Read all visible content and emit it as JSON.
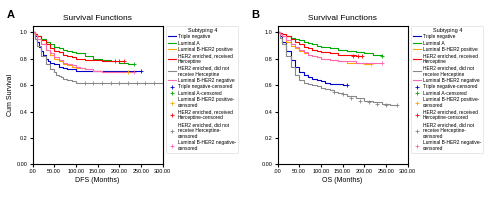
{
  "chart_data": [
    {
      "type": "step",
      "title": "Survival Functions",
      "annotations": [
        "A"
      ],
      "x_label": "DFS (Months)",
      "y_label": "Cum Survival",
      "xlim": [
        0,
        300
      ],
      "ylim": [
        0.0,
        1.05
      ],
      "xticks": [
        {
          "value": 0,
          "label": ".00"
        },
        {
          "value": 50,
          "label": "50.00"
        },
        {
          "value": 100,
          "label": "100.00"
        },
        {
          "value": 150,
          "label": "150.00"
        },
        {
          "value": 200,
          "label": "200.00"
        },
        {
          "value": 250,
          "label": "250.00"
        },
        {
          "value": 300,
          "label": "300.00"
        }
      ],
      "yticks": [
        {
          "value": 0.0,
          "label": "0.00"
        },
        {
          "value": 0.2,
          "label": "0.2"
        },
        {
          "value": 0.4,
          "label": "0.4"
        },
        {
          "value": 0.6,
          "label": "0.6"
        },
        {
          "value": 0.8,
          "label": "0.8"
        },
        {
          "value": 1.0,
          "label": "1.0"
        }
      ],
      "legend": "right",
      "legend_title": "Subtyping 4",
      "series": [
        {
          "name": "Triple negative",
          "type": "step",
          "color": "#0000CC",
          "x": [
            0,
            5,
            10,
            15,
            20,
            25,
            30,
            35,
            40,
            50,
            60,
            70,
            80,
            90,
            100,
            120,
            140,
            160,
            180,
            200,
            220,
            240,
            250
          ],
          "values": [
            1.0,
            0.97,
            0.93,
            0.89,
            0.86,
            0.83,
            0.8,
            0.78,
            0.77,
            0.76,
            0.74,
            0.73,
            0.72,
            0.72,
            0.71,
            0.71,
            0.71,
            0.71,
            0.71,
            0.71,
            0.71,
            0.71,
            0.71
          ]
        },
        {
          "name": "Luminal A",
          "type": "step",
          "color": "#00AA00",
          "x": [
            0,
            5,
            10,
            20,
            30,
            40,
            50,
            60,
            70,
            80,
            90,
            100,
            120,
            140,
            160,
            180,
            200,
            220,
            235
          ],
          "values": [
            1.0,
            0.99,
            0.97,
            0.95,
            0.93,
            0.91,
            0.89,
            0.88,
            0.87,
            0.86,
            0.85,
            0.84,
            0.82,
            0.8,
            0.79,
            0.78,
            0.77,
            0.76,
            0.76
          ]
        },
        {
          "name": "Luminal B-HER2 positive",
          "type": "step",
          "color": "#FFA500",
          "x": [
            0,
            5,
            10,
            20,
            30,
            40,
            50,
            60,
            70,
            80,
            90,
            100,
            120,
            140,
            160,
            180,
            200,
            220
          ],
          "values": [
            1.0,
            0.98,
            0.95,
            0.91,
            0.87,
            0.83,
            0.8,
            0.78,
            0.76,
            0.75,
            0.74,
            0.73,
            0.72,
            0.71,
            0.7,
            0.7,
            0.7,
            0.7
          ]
        },
        {
          "name": "HER2 enriched, received\nHerceptine",
          "type": "step",
          "color": "#FF0000",
          "x": [
            0,
            5,
            10,
            20,
            30,
            40,
            50,
            60,
            70,
            80,
            90,
            100,
            120,
            140,
            160,
            180,
            200,
            210
          ],
          "values": [
            1.0,
            0.99,
            0.97,
            0.94,
            0.91,
            0.88,
            0.86,
            0.85,
            0.83,
            0.82,
            0.81,
            0.8,
            0.79,
            0.79,
            0.78,
            0.78,
            0.78,
            0.78
          ]
        },
        {
          "name": "HER2 enriched, did not\nreceive Herceptine",
          "type": "step",
          "color": "#888888",
          "x": [
            0,
            5,
            10,
            20,
            30,
            40,
            50,
            55,
            60,
            65,
            70,
            80,
            90,
            100,
            110,
            120,
            130,
            140,
            150,
            160,
            180,
            200,
            220,
            240,
            260,
            280,
            300
          ],
          "values": [
            1.0,
            0.95,
            0.9,
            0.82,
            0.76,
            0.72,
            0.7,
            0.68,
            0.67,
            0.66,
            0.65,
            0.64,
            0.63,
            0.62,
            0.62,
            0.62,
            0.62,
            0.62,
            0.62,
            0.62,
            0.62,
            0.62,
            0.62,
            0.62,
            0.62,
            0.62,
            0.62
          ]
        },
        {
          "name": "Luminal B-HER2 negative",
          "type": "step",
          "color": "#FF69B4",
          "x": [
            0,
            5,
            10,
            20,
            30,
            40,
            50,
            60,
            70,
            80,
            90,
            100,
            110,
            120,
            140,
            160,
            180,
            200,
            220,
            235
          ],
          "values": [
            1.0,
            0.98,
            0.95,
            0.91,
            0.87,
            0.84,
            0.81,
            0.79,
            0.77,
            0.76,
            0.75,
            0.74,
            0.73,
            0.72,
            0.71,
            0.7,
            0.7,
            0.7,
            0.7,
            0.7
          ]
        },
        {
          "name": "Triple negative-censored",
          "type": "scatter",
          "marker": "plus",
          "color": "#0000CC",
          "x": [
            250
          ],
          "values": [
            0.71
          ]
        },
        {
          "name": "Luminal A-censored",
          "type": "scatter",
          "marker": "plus",
          "color": "#00AA00",
          "x": [
            235
          ],
          "values": [
            0.76
          ]
        },
        {
          "name": "Luminal B-HER2 positive-\ncensored",
          "type": "scatter",
          "marker": "plus",
          "color": "#FFA500",
          "x": [
            220
          ],
          "values": [
            0.7
          ]
        },
        {
          "name": "HER2 enriched, received\nHerceptine-censored",
          "type": "scatter",
          "marker": "plus",
          "color": "#FF0000",
          "x": [
            190,
            200,
            210
          ],
          "values": [
            0.78,
            0.78,
            0.78
          ]
        },
        {
          "name": "HER2 enriched, did not\nreceive Herceptine-\ncensored",
          "type": "scatter",
          "marker": "plus",
          "color": "#888888",
          "x": [
            120,
            140,
            160,
            180,
            200,
            220,
            240,
            260,
            280,
            300
          ],
          "values": [
            0.62,
            0.62,
            0.62,
            0.62,
            0.62,
            0.62,
            0.62,
            0.62,
            0.62,
            0.62
          ]
        },
        {
          "name": "Luminal B-HER2 negative-\ncensored",
          "type": "scatter",
          "marker": "plus",
          "color": "#FF69B4",
          "x": [
            235
          ],
          "values": [
            0.7
          ]
        }
      ]
    },
    {
      "type": "step",
      "title": "Survival Functions",
      "annotations": [
        "B"
      ],
      "x_label": "OS (Months)",
      "xlim": [
        0,
        300
      ],
      "ylim": [
        0.0,
        1.05
      ],
      "xticks": [
        {
          "value": 0,
          "label": ".00"
        },
        {
          "value": 50,
          "label": "50.00"
        },
        {
          "value": 100,
          "label": "100.00"
        },
        {
          "value": 150,
          "label": "150.00"
        },
        {
          "value": 200,
          "label": "200.00"
        },
        {
          "value": 250,
          "label": "250.00"
        },
        {
          "value": 300,
          "label": "300.00"
        }
      ],
      "yticks": [
        {
          "value": 0.0,
          "label": "0.00"
        },
        {
          "value": 0.2,
          "label": "0.2"
        },
        {
          "value": 0.4,
          "label": "0.4"
        },
        {
          "value": 0.6,
          "label": "0.6"
        },
        {
          "value": 0.8,
          "label": "0.8"
        },
        {
          "value": 1.0,
          "label": "1.0"
        }
      ],
      "legend": "right",
      "legend_title": "Subtyping 4",
      "series": [
        {
          "name": "Triple negative",
          "type": "step",
          "color": "#0000CC",
          "x": [
            0,
            5,
            10,
            20,
            30,
            40,
            50,
            60,
            70,
            80,
            90,
            100,
            110,
            120,
            130,
            140,
            150,
            160
          ],
          "values": [
            1.0,
            0.97,
            0.93,
            0.86,
            0.79,
            0.74,
            0.7,
            0.68,
            0.66,
            0.65,
            0.64,
            0.63,
            0.62,
            0.61,
            0.61,
            0.61,
            0.6,
            0.6
          ]
        },
        {
          "name": "Luminal A",
          "type": "step",
          "color": "#00AA00",
          "x": [
            0,
            5,
            10,
            20,
            30,
            40,
            50,
            60,
            70,
            80,
            90,
            100,
            120,
            140,
            160,
            180,
            200,
            220,
            240
          ],
          "values": [
            1.0,
            0.995,
            0.99,
            0.97,
            0.96,
            0.95,
            0.94,
            0.93,
            0.92,
            0.91,
            0.9,
            0.89,
            0.88,
            0.87,
            0.86,
            0.85,
            0.84,
            0.83,
            0.82
          ]
        },
        {
          "name": "Luminal B-HER2 positive",
          "type": "step",
          "color": "#FFA500",
          "x": [
            0,
            5,
            10,
            20,
            30,
            40,
            50,
            60,
            70,
            80,
            90,
            100,
            120,
            140,
            160,
            180,
            200,
            215
          ],
          "values": [
            1.0,
            0.99,
            0.97,
            0.93,
            0.9,
            0.88,
            0.86,
            0.84,
            0.83,
            0.82,
            0.81,
            0.8,
            0.79,
            0.78,
            0.77,
            0.77,
            0.76,
            0.76
          ]
        },
        {
          "name": "HER2 enriched, received\nHerceptine",
          "type": "step",
          "color": "#FF0000",
          "x": [
            0,
            5,
            10,
            20,
            30,
            40,
            50,
            60,
            70,
            80,
            90,
            100,
            120,
            140,
            160,
            180,
            195
          ],
          "values": [
            1.0,
            0.995,
            0.99,
            0.97,
            0.95,
            0.93,
            0.91,
            0.89,
            0.88,
            0.87,
            0.86,
            0.85,
            0.84,
            0.83,
            0.83,
            0.82,
            0.82
          ]
        },
        {
          "name": "HER2 enriched, did not\nreceive Herceptine",
          "type": "step",
          "color": "#888888",
          "x": [
            0,
            5,
            10,
            20,
            30,
            40,
            50,
            60,
            70,
            80,
            90,
            100,
            110,
            120,
            130,
            140,
            150,
            160,
            180,
            200,
            220,
            240,
            260,
            275
          ],
          "values": [
            1.0,
            0.96,
            0.91,
            0.82,
            0.74,
            0.68,
            0.64,
            0.62,
            0.61,
            0.6,
            0.59,
            0.58,
            0.57,
            0.56,
            0.55,
            0.54,
            0.53,
            0.52,
            0.5,
            0.48,
            0.47,
            0.46,
            0.45,
            0.45
          ]
        },
        {
          "name": "Luminal B-HER2 negative",
          "type": "step",
          "color": "#FF69B4",
          "x": [
            0,
            5,
            10,
            20,
            30,
            40,
            50,
            60,
            70,
            80,
            90,
            100,
            120,
            140,
            160,
            180,
            200,
            220,
            240
          ],
          "values": [
            1.0,
            0.99,
            0.97,
            0.94,
            0.91,
            0.89,
            0.87,
            0.85,
            0.83,
            0.82,
            0.81,
            0.8,
            0.79,
            0.78,
            0.78,
            0.77,
            0.77,
            0.77,
            0.77
          ]
        },
        {
          "name": "Triple negative-censored",
          "type": "scatter",
          "marker": "plus",
          "color": "#0000CC",
          "x": [
            160
          ],
          "values": [
            0.6
          ]
        },
        {
          "name": "Luminal A-censored",
          "type": "scatter",
          "marker": "plus",
          "color": "#00AA00",
          "x": [
            240
          ],
          "values": [
            0.82
          ]
        },
        {
          "name": "Luminal B-HER2 positive-\ncensored",
          "type": "scatter",
          "marker": "plus",
          "color": "#FFA500",
          "x": [
            215
          ],
          "values": [
            0.76
          ]
        },
        {
          "name": "HER2 enriched, received\nHerceptine-censored",
          "type": "scatter",
          "marker": "plus",
          "color": "#FF0000",
          "x": [
            175,
            185,
            195
          ],
          "values": [
            0.82,
            0.82,
            0.82
          ]
        },
        {
          "name": "HER2 enriched, did not\nreceive Herceptine-\ncensored",
          "type": "scatter",
          "marker": "plus",
          "color": "#888888",
          "x": [
            130,
            150,
            170,
            190,
            210,
            230,
            250,
            275
          ],
          "values": [
            0.55,
            0.53,
            0.5,
            0.48,
            0.47,
            0.46,
            0.45,
            0.45
          ]
        },
        {
          "name": "Luminal B-HER2 negative-\ncensored",
          "type": "scatter",
          "marker": "plus",
          "color": "#FF69B4",
          "x": [
            240
          ],
          "values": [
            0.77
          ]
        }
      ]
    }
  ]
}
